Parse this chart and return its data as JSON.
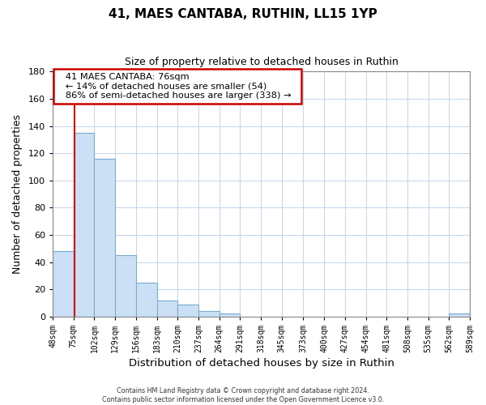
{
  "title": "41, MAES CANTABA, RUTHIN, LL15 1YP",
  "subtitle": "Size of property relative to detached houses in Ruthin",
  "xlabel": "Distribution of detached houses by size in Ruthin",
  "ylabel": "Number of detached properties",
  "bar_color": "#cce0f5",
  "bar_edge_color": "#7aaad0",
  "vline_color": "#cc0000",
  "vline_x": 76,
  "bin_edges": [
    48,
    75,
    102,
    129,
    156,
    183,
    210,
    237,
    264,
    291,
    318,
    345,
    373,
    400,
    427,
    454,
    481,
    508,
    535,
    562,
    589
  ],
  "bin_counts": [
    48,
    135,
    116,
    45,
    25,
    12,
    9,
    4,
    2,
    0,
    0,
    0,
    0,
    0,
    0,
    0,
    0,
    0,
    0,
    2
  ],
  "ylim": [
    0,
    180
  ],
  "yticks": [
    0,
    20,
    40,
    60,
    80,
    100,
    120,
    140,
    160,
    180
  ],
  "xtick_labels": [
    "48sqm",
    "75sqm",
    "102sqm",
    "129sqm",
    "156sqm",
    "183sqm",
    "210sqm",
    "237sqm",
    "264sqm",
    "291sqm",
    "318sqm",
    "345sqm",
    "373sqm",
    "400sqm",
    "427sqm",
    "454sqm",
    "481sqm",
    "508sqm",
    "535sqm",
    "562sqm",
    "589sqm"
  ],
  "annotation_title": "41 MAES CANTABA: 76sqm",
  "annotation_line1": "← 14% of detached houses are smaller (54)",
  "annotation_line2": "86% of semi-detached houses are larger (338) →",
  "annotation_box_color": "#ffffff",
  "annotation_box_edge": "#cc0000",
  "footer_line1": "Contains HM Land Registry data © Crown copyright and database right 2024.",
  "footer_line2": "Contains public sector information licensed under the Open Government Licence v3.0.",
  "background_color": "#ffffff",
  "grid_color": "#b8d0e8"
}
